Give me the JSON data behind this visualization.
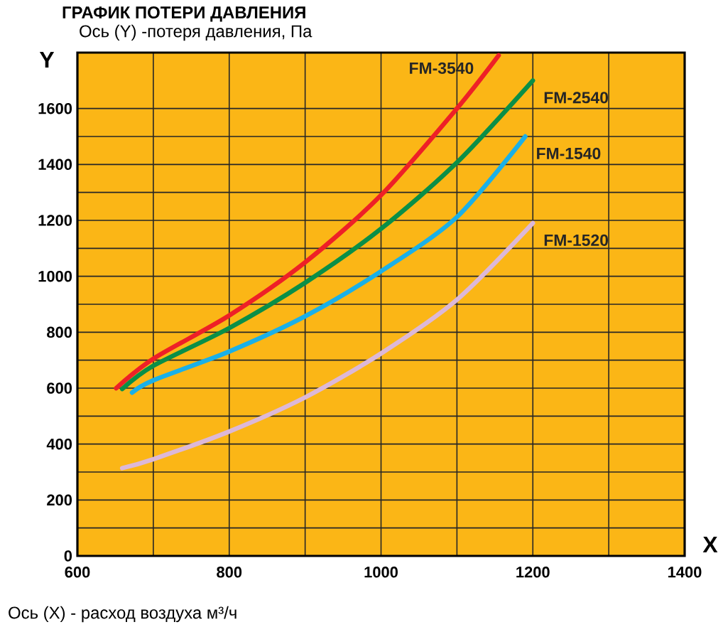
{
  "chart_data": {
    "type": "line",
    "title": "ГРАФИК ПОТЕРИ ДАВЛЕНИЯ",
    "ylabel": "Ось (Y) -потеря давления, Па",
    "xlabel": "Ось (X) -  расход воздуха м³/ч",
    "annotations": [
      "Y",
      "X"
    ],
    "xlim": [
      600,
      1400
    ],
    "xticks": [
      600,
      800,
      1000,
      1200,
      1400
    ],
    "ylim": [
      0,
      1800
    ],
    "yticks": [
      0,
      200,
      400,
      600,
      800,
      1000,
      1200,
      1400,
      1600
    ],
    "grid": true,
    "marker": "none",
    "line_style": "solid",
    "series": [
      {
        "name": "FM-3540",
        "color": "#ee2027",
        "x": [
          651,
          700,
          800,
          900,
          1000,
          1100,
          1155
        ],
        "values": [
          600,
          705,
          860,
          1050,
          1290,
          1600,
          1790
        ]
      },
      {
        "name": "FM-2540",
        "color": "#0a8f48",
        "x": [
          659,
          700,
          800,
          900,
          1000,
          1100,
          1200
        ],
        "values": [
          597,
          680,
          815,
          977,
          1170,
          1407,
          1700
        ]
      },
      {
        "name": "FM-1540",
        "color": "#1ab0e8",
        "x": [
          672,
          700,
          800,
          900,
          1000,
          1100,
          1190
        ],
        "values": [
          584,
          628,
          731,
          857,
          1018,
          1212,
          1500
        ]
      },
      {
        "name": "FM-1520",
        "color": "#dcb8d8",
        "x": [
          659,
          700,
          800,
          900,
          1000,
          1100,
          1200
        ],
        "values": [
          314,
          346,
          445,
          567,
          724,
          916,
          1190
        ]
      }
    ]
  }
}
